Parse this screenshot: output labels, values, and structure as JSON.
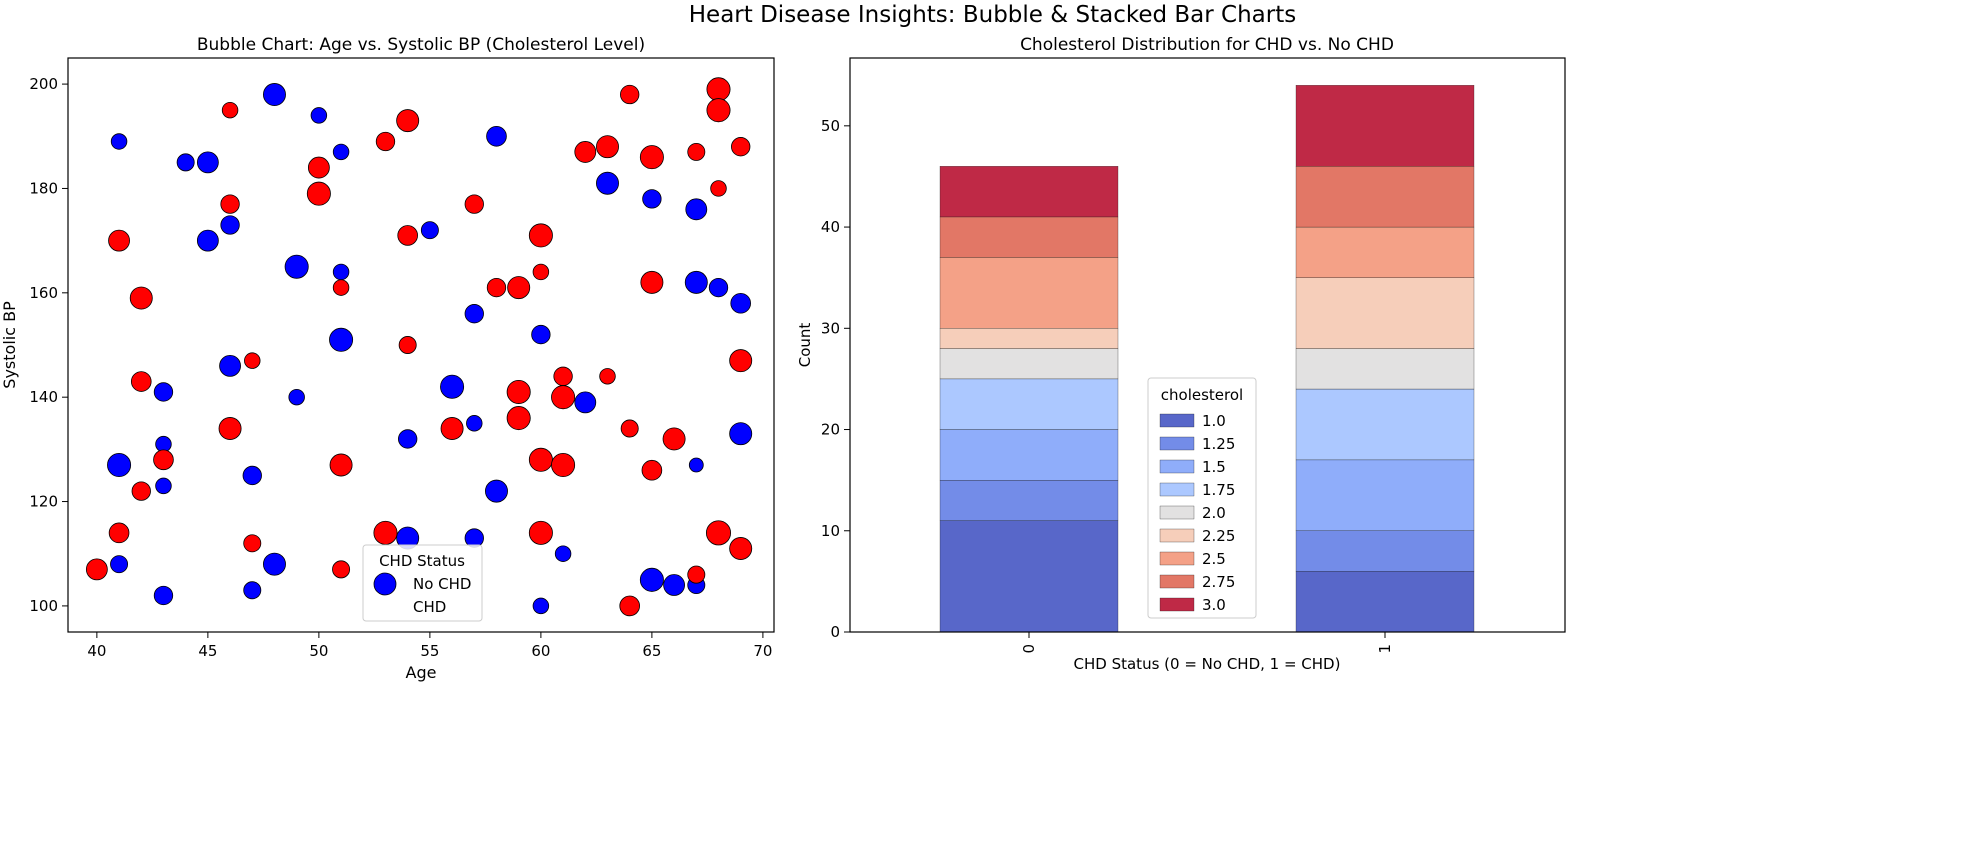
{
  "suptitle": "Heart Disease Insights: Bubble & Stacked Bar Charts",
  "colors": {
    "no_chd": "#0000ff",
    "chd": "#ff0000",
    "edge": "#000000"
  },
  "chart_data": [
    {
      "type": "scatter",
      "title": "Bubble Chart: Age vs. Systolic BP (Cholesterol Level)",
      "xlabel": "Age",
      "ylabel": "Systolic BP",
      "xlim": [
        38.7,
        70.5
      ],
      "ylim": [
        95,
        205
      ],
      "xticks": [
        40,
        45,
        50,
        55,
        60,
        65,
        70
      ],
      "yticks": [
        100,
        120,
        140,
        160,
        180,
        200
      ],
      "grid": false,
      "size_variable": "cholesterol",
      "legend": {
        "title": "CHD Status",
        "entries": [
          "No CHD",
          "CHD"
        ],
        "location": "lower-center"
      },
      "series": [
        {
          "name": "No CHD",
          "color": "#0000ff",
          "points": [
            {
              "x": 48,
              "y": 198,
              "size": 2.5
            },
            {
              "x": 50,
              "y": 194,
              "size": 1.25
            },
            {
              "x": 41,
              "y": 189,
              "size": 1.25
            },
            {
              "x": 58,
              "y": 190,
              "size": 2.0
            },
            {
              "x": 51,
              "y": 187,
              "size": 1.25
            },
            {
              "x": 44,
              "y": 185,
              "size": 1.5
            },
            {
              "x": 45,
              "y": 185,
              "size": 2.25
            },
            {
              "x": 63,
              "y": 181,
              "size": 2.5
            },
            {
              "x": 65,
              "y": 178,
              "size": 1.75
            },
            {
              "x": 67,
              "y": 176,
              "size": 2.25
            },
            {
              "x": 46,
              "y": 173,
              "size": 1.75
            },
            {
              "x": 55,
              "y": 172,
              "size": 1.5
            },
            {
              "x": 45,
              "y": 170,
              "size": 2.25
            },
            {
              "x": 49,
              "y": 165,
              "size": 2.75
            },
            {
              "x": 51,
              "y": 164,
              "size": 1.25
            },
            {
              "x": 67,
              "y": 162,
              "size": 2.5
            },
            {
              "x": 68,
              "y": 161,
              "size": 1.75
            },
            {
              "x": 69,
              "y": 158,
              "size": 2.0
            },
            {
              "x": 57,
              "y": 156,
              "size": 1.75
            },
            {
              "x": 60,
              "y": 152,
              "size": 1.75
            },
            {
              "x": 51,
              "y": 151,
              "size": 2.75
            },
            {
              "x": 46,
              "y": 146,
              "size": 2.25
            },
            {
              "x": 56,
              "y": 142,
              "size": 2.75
            },
            {
              "x": 43,
              "y": 141,
              "size": 1.75
            },
            {
              "x": 49,
              "y": 140,
              "size": 1.25
            },
            {
              "x": 62,
              "y": 139,
              "size": 2.25
            },
            {
              "x": 57,
              "y": 135,
              "size": 1.25
            },
            {
              "x": 69,
              "y": 133,
              "size": 2.5
            },
            {
              "x": 54,
              "y": 132,
              "size": 1.75
            },
            {
              "x": 43,
              "y": 131,
              "size": 1.25
            },
            {
              "x": 41,
              "y": 127,
              "size": 2.75
            },
            {
              "x": 67,
              "y": 127,
              "size": 1.0
            },
            {
              "x": 47,
              "y": 125,
              "size": 1.75
            },
            {
              "x": 43,
              "y": 123,
              "size": 1.25
            },
            {
              "x": 58,
              "y": 122,
              "size": 2.5
            },
            {
              "x": 54,
              "y": 113,
              "size": 2.5
            },
            {
              "x": 57,
              "y": 113,
              "size": 1.75
            },
            {
              "x": 61,
              "y": 110,
              "size": 1.25
            },
            {
              "x": 41,
              "y": 108,
              "size": 1.5
            },
            {
              "x": 48,
              "y": 108,
              "size": 2.5
            },
            {
              "x": 65,
              "y": 105,
              "size": 2.75
            },
            {
              "x": 66,
              "y": 104,
              "size": 2.25
            },
            {
              "x": 67,
              "y": 104,
              "size": 1.5
            },
            {
              "x": 47,
              "y": 103,
              "size": 1.5
            },
            {
              "x": 43,
              "y": 102,
              "size": 1.75
            },
            {
              "x": 60,
              "y": 100,
              "size": 1.25
            }
          ]
        },
        {
          "name": "CHD",
          "color": "#ff0000",
          "points": [
            {
              "x": 68,
              "y": 199,
              "size": 2.75
            },
            {
              "x": 64,
              "y": 198,
              "size": 1.75
            },
            {
              "x": 46,
              "y": 195,
              "size": 1.25
            },
            {
              "x": 68,
              "y": 195,
              "size": 2.75
            },
            {
              "x": 54,
              "y": 193,
              "size": 2.5
            },
            {
              "x": 53,
              "y": 189,
              "size": 1.75
            },
            {
              "x": 63,
              "y": 188,
              "size": 2.5
            },
            {
              "x": 69,
              "y": 188,
              "size": 1.75
            },
            {
              "x": 62,
              "y": 187,
              "size": 2.25
            },
            {
              "x": 67,
              "y": 187,
              "size": 1.5
            },
            {
              "x": 65,
              "y": 186,
              "size": 2.75
            },
            {
              "x": 50,
              "y": 184,
              "size": 2.25
            },
            {
              "x": 68,
              "y": 180,
              "size": 1.25
            },
            {
              "x": 50,
              "y": 179,
              "size": 2.75
            },
            {
              "x": 46,
              "y": 177,
              "size": 1.75
            },
            {
              "x": 57,
              "y": 177,
              "size": 1.75
            },
            {
              "x": 60,
              "y": 171,
              "size": 2.75
            },
            {
              "x": 54,
              "y": 171,
              "size": 2.0
            },
            {
              "x": 41,
              "y": 170,
              "size": 2.25
            },
            {
              "x": 60,
              "y": 164,
              "size": 1.25
            },
            {
              "x": 65,
              "y": 162,
              "size": 2.5
            },
            {
              "x": 51,
              "y": 161,
              "size": 1.25
            },
            {
              "x": 58,
              "y": 161,
              "size": 1.75
            },
            {
              "x": 59,
              "y": 161,
              "size": 2.5
            },
            {
              "x": 42,
              "y": 159,
              "size": 2.5
            },
            {
              "x": 54,
              "y": 150,
              "size": 1.5
            },
            {
              "x": 47,
              "y": 147,
              "size": 1.25
            },
            {
              "x": 69,
              "y": 147,
              "size": 2.5
            },
            {
              "x": 61,
              "y": 144,
              "size": 1.75
            },
            {
              "x": 63,
              "y": 144,
              "size": 1.25
            },
            {
              "x": 42,
              "y": 143,
              "size": 2.0
            },
            {
              "x": 59,
              "y": 141,
              "size": 2.75
            },
            {
              "x": 61,
              "y": 140,
              "size": 2.75
            },
            {
              "x": 59,
              "y": 136,
              "size": 2.75
            },
            {
              "x": 46,
              "y": 134,
              "size": 2.5
            },
            {
              "x": 56,
              "y": 134,
              "size": 2.5
            },
            {
              "x": 64,
              "y": 134,
              "size": 1.5
            },
            {
              "x": 66,
              "y": 132,
              "size": 2.5
            },
            {
              "x": 60,
              "y": 128,
              "size": 2.75
            },
            {
              "x": 43,
              "y": 128,
              "size": 2.0
            },
            {
              "x": 51,
              "y": 127,
              "size": 2.5
            },
            {
              "x": 61,
              "y": 127,
              "size": 2.75
            },
            {
              "x": 65,
              "y": 126,
              "size": 2.0
            },
            {
              "x": 42,
              "y": 122,
              "size": 1.75
            },
            {
              "x": 41,
              "y": 114,
              "size": 2.0
            },
            {
              "x": 53,
              "y": 114,
              "size": 2.75
            },
            {
              "x": 60,
              "y": 114,
              "size": 2.75
            },
            {
              "x": 68,
              "y": 114,
              "size": 3.0
            },
            {
              "x": 47,
              "y": 112,
              "size": 1.5
            },
            {
              "x": 69,
              "y": 111,
              "size": 2.5
            },
            {
              "x": 40,
              "y": 107,
              "size": 2.25
            },
            {
              "x": 51,
              "y": 107,
              "size": 1.5
            },
            {
              "x": 67,
              "y": 106,
              "size": 1.5
            },
            {
              "x": 64,
              "y": 100,
              "size": 2.0
            }
          ]
        }
      ]
    },
    {
      "type": "bar",
      "stacked": true,
      "title": "Cholesterol Distribution for CHD vs. No CHD",
      "xlabel": "CHD Status (0 = No CHD, 1 = CHD)",
      "ylabel": "Count",
      "categories": [
        "0",
        "1"
      ],
      "ylim": [
        0,
        56.7
      ],
      "yticks": [
        0,
        10,
        20,
        30,
        40,
        50
      ],
      "grid": false,
      "legend": {
        "title": "cholesterol",
        "location": "lower-center"
      },
      "series": [
        {
          "name": "1.0",
          "color": "#3b4cc0",
          "values": [
            11,
            6
          ]
        },
        {
          "name": "1.25",
          "color": "#5a78e4",
          "values": [
            4,
            4
          ]
        },
        {
          "name": "1.5",
          "color": "#7b9ff9",
          "values": [
            5,
            7
          ]
        },
        {
          "name": "1.75",
          "color": "#9ebeff",
          "values": [
            5,
            7
          ]
        },
        {
          "name": "2.0",
          "color": "#dddcdc",
          "values": [
            3,
            4
          ]
        },
        {
          "name": "2.25",
          "color": "#f4c6ae",
          "values": [
            2,
            7
          ]
        },
        {
          "name": "2.5",
          "color": "#f29072",
          "values": [
            7,
            5
          ]
        },
        {
          "name": "2.75",
          "color": "#dd5f4b",
          "values": [
            4,
            6
          ]
        },
        {
          "name": "3.0",
          "color": "#b40426",
          "values": [
            5,
            8
          ]
        }
      ]
    }
  ]
}
